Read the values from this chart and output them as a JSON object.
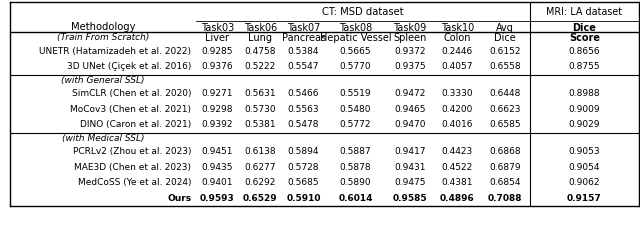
{
  "title_ct": "CT: MSD dataset",
  "title_mri": "MRI: LA dataset",
  "col_headers_line1": [
    "Task03",
    "Task06",
    "Task07",
    "Task08",
    "Task09",
    "Task10",
    "Avg",
    "Dice"
  ],
  "col_headers_line2": [
    "Liver",
    "Lung",
    "Pancreas",
    "Hepatic Vessel",
    "Spleen",
    "Colon",
    "Dice",
    "Score"
  ],
  "section_labels": [
    "(Train From Scratch)",
    "(with General SSL)",
    "(with Medical SSL)"
  ],
  "rows": [
    {
      "method": "UNETR (Hatamizadeh et al. 2022)",
      "values": [
        "0.9285",
        "0.4758",
        "0.5384",
        "0.5665",
        "0.9372",
        "0.2446",
        "0.6152",
        "0.8656"
      ],
      "bold": false
    },
    {
      "method": "3D UNet (Çiçek et al. 2016)",
      "values": [
        "0.9376",
        "0.5222",
        "0.5547",
        "0.5770",
        "0.9375",
        "0.4057",
        "0.6558",
        "0.8755"
      ],
      "bold": false
    },
    {
      "method": "SimCLR (Chen et al. 2020)",
      "values": [
        "0.9271",
        "0.5631",
        "0.5466",
        "0.5519",
        "0.9472",
        "0.3330",
        "0.6448",
        "0.8988"
      ],
      "bold": false
    },
    {
      "method": "MoCov3 (Chen et al. 2021)",
      "values": [
        "0.9298",
        "0.5730",
        "0.5563",
        "0.5480",
        "0.9465",
        "0.4200",
        "0.6623",
        "0.9009"
      ],
      "bold": false
    },
    {
      "method": "DINO (Caron et al. 2021)",
      "values": [
        "0.9392",
        "0.5381",
        "0.5478",
        "0.5772",
        "0.9470",
        "0.4016",
        "0.6585",
        "0.9029"
      ],
      "bold": false
    },
    {
      "method": "PCRLv2 (Zhou et al. 2023)",
      "values": [
        "0.9451",
        "0.6138",
        "0.5894",
        "0.5887",
        "0.9417",
        "0.4423",
        "0.6868",
        "0.9053"
      ],
      "bold": false
    },
    {
      "method": "MAE3D (Chen et al. 2023)",
      "values": [
        "0.9435",
        "0.6277",
        "0.5728",
        "0.5878",
        "0.9431",
        "0.4522",
        "0.6879",
        "0.9054"
      ],
      "bold": false
    },
    {
      "method": "MedCoSS (Ye et al. 2024)",
      "values": [
        "0.9401",
        "0.6292",
        "0.5685",
        "0.5890",
        "0.9475",
        "0.4381",
        "0.6854",
        "0.9062"
      ],
      "bold": false
    },
    {
      "method": "Ours",
      "values": [
        "0.9593",
        "0.6529",
        "0.5910",
        "0.6014",
        "0.9585",
        "0.4896",
        "0.7088",
        "0.9157"
      ],
      "bold": true
    }
  ],
  "bg_color": "#ffffff",
  "text_color": "#000000",
  "font_size": 7.0,
  "header_font_size": 7.2
}
